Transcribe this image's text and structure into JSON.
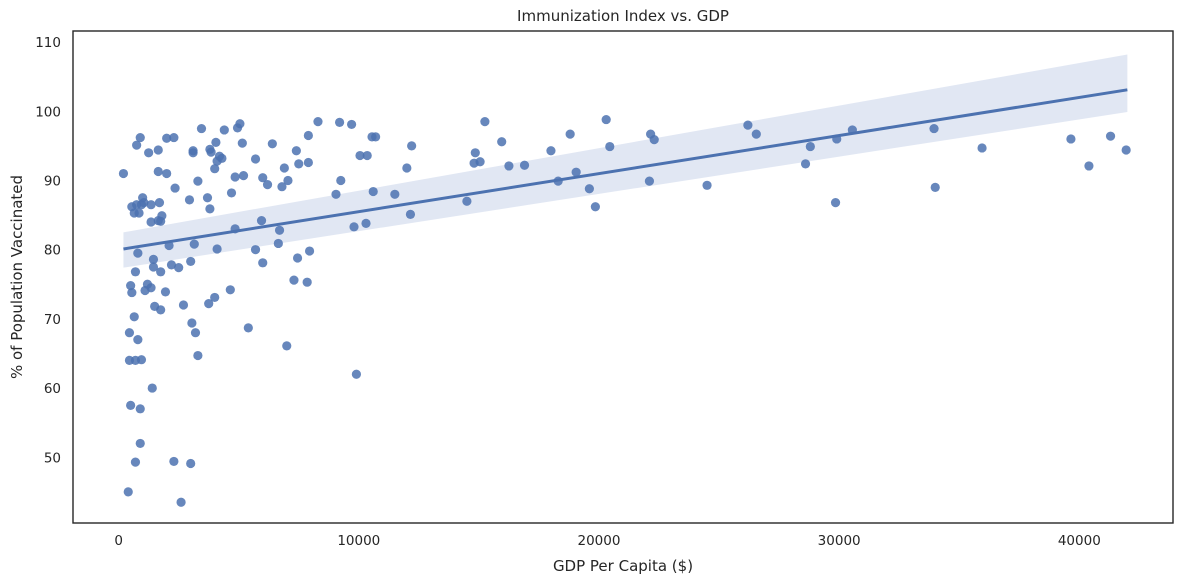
{
  "chart_data": {
    "type": "scatter",
    "title": "Immunization Index vs. GDP",
    "xlabel": "GDP Per Capita ($)",
    "ylabel": "% of Population Vaccinated",
    "xlim": [
      -1900,
      43900
    ],
    "ylim": [
      40.5,
      111.6
    ],
    "xticks": [
      0,
      10000,
      20000,
      30000,
      40000
    ],
    "yticks": [
      50,
      60,
      70,
      80,
      90,
      100,
      110
    ],
    "grid": false,
    "legend": "none",
    "point_color": "#4c72b0",
    "regression": {
      "x": [
        200,
        42000
      ],
      "y": [
        80.1,
        103.1
      ],
      "ci_lower": [
        77.4,
        99.9
      ],
      "ci_upper": [
        82.5,
        108.2
      ],
      "color": "#4c72b0",
      "band_color": "#c8d3ea"
    },
    "points": [
      [
        200,
        91
      ],
      [
        400,
        45
      ],
      [
        450,
        68
      ],
      [
        450,
        64
      ],
      [
        500,
        57.5
      ],
      [
        500,
        74.8
      ],
      [
        550,
        86.2
      ],
      [
        550,
        73.8
      ],
      [
        650,
        85.3
      ],
      [
        650,
        70.3
      ],
      [
        700,
        76.8
      ],
      [
        700,
        64
      ],
      [
        700,
        49.3
      ],
      [
        750,
        95.1
      ],
      [
        750,
        86.5
      ],
      [
        800,
        67
      ],
      [
        800,
        79.5
      ],
      [
        850,
        85.3
      ],
      [
        900,
        96.2
      ],
      [
        900,
        57
      ],
      [
        900,
        52
      ],
      [
        950,
        86.5
      ],
      [
        950,
        64.1
      ],
      [
        1000,
        87.5
      ],
      [
        1050,
        86.8
      ],
      [
        1100,
        74.1
      ],
      [
        1200,
        75
      ],
      [
        1250,
        94
      ],
      [
        1350,
        86.5
      ],
      [
        1350,
        84
      ],
      [
        1350,
        74.5
      ],
      [
        1400,
        60
      ],
      [
        1450,
        77.5
      ],
      [
        1450,
        78.6
      ],
      [
        1500,
        71.8
      ],
      [
        1650,
        91.3
      ],
      [
        1650,
        94.4
      ],
      [
        1650,
        84.2
      ],
      [
        1700,
        86.8
      ],
      [
        1750,
        84.1
      ],
      [
        1750,
        71.3
      ],
      [
        1750,
        76.8
      ],
      [
        1800,
        84.9
      ],
      [
        1950,
        73.9
      ],
      [
        2000,
        96.1
      ],
      [
        2000,
        91
      ],
      [
        2100,
        80.6
      ],
      [
        2200,
        77.8
      ],
      [
        2300,
        96.2
      ],
      [
        2300,
        49.4
      ],
      [
        2350,
        88.9
      ],
      [
        2500,
        77.4
      ],
      [
        2600,
        43.5
      ],
      [
        2700,
        72
      ],
      [
        2950,
        87.2
      ],
      [
        3000,
        78.3
      ],
      [
        3000,
        49.1
      ],
      [
        3050,
        69.4
      ],
      [
        3100,
        94.3
      ],
      [
        3100,
        94
      ],
      [
        3150,
        80.8
      ],
      [
        3200,
        68
      ],
      [
        3300,
        64.7
      ],
      [
        3300,
        89.9
      ],
      [
        3450,
        97.5
      ],
      [
        3700,
        87.5
      ],
      [
        3750,
        72.2
      ],
      [
        3800,
        85.9
      ],
      [
        3800,
        94.5
      ],
      [
        3850,
        94.1
      ],
      [
        4000,
        91.7
      ],
      [
        4000,
        73.1
      ],
      [
        4050,
        95.5
      ],
      [
        4100,
        92.8
      ],
      [
        4100,
        80.1
      ],
      [
        4200,
        93.5
      ],
      [
        4300,
        93.2
      ],
      [
        4400,
        97.3
      ],
      [
        4650,
        74.2
      ],
      [
        4700,
        88.2
      ],
      [
        4850,
        83
      ],
      [
        4850,
        90.5
      ],
      [
        4950,
        97.6
      ],
      [
        5050,
        98.2
      ],
      [
        5150,
        95.4
      ],
      [
        5200,
        90.7
      ],
      [
        5400,
        68.7
      ],
      [
        5700,
        93.1
      ],
      [
        5700,
        80
      ],
      [
        5950,
        84.2
      ],
      [
        6000,
        90.4
      ],
      [
        6000,
        78.1
      ],
      [
        6200,
        89.4
      ],
      [
        6400,
        95.3
      ],
      [
        6650,
        80.9
      ],
      [
        6700,
        82.8
      ],
      [
        6800,
        89.1
      ],
      [
        6900,
        91.8
      ],
      [
        7000,
        66.1
      ],
      [
        7050,
        90
      ],
      [
        7300,
        75.6
      ],
      [
        7400,
        94.3
      ],
      [
        7450,
        78.8
      ],
      [
        7500,
        92.4
      ],
      [
        7850,
        75.3
      ],
      [
        7900,
        96.5
      ],
      [
        7900,
        92.6
      ],
      [
        7950,
        79.8
      ],
      [
        8300,
        98.5
      ],
      [
        9050,
        88
      ],
      [
        9200,
        98.4
      ],
      [
        9250,
        90
      ],
      [
        9700,
        98.1
      ],
      [
        9800,
        83.3
      ],
      [
        9900,
        62
      ],
      [
        10050,
        93.6
      ],
      [
        10300,
        83.8
      ],
      [
        10350,
        93.6
      ],
      [
        10550,
        96.3
      ],
      [
        10600,
        88.4
      ],
      [
        10700,
        96.3
      ],
      [
        11500,
        88
      ],
      [
        12000,
        91.8
      ],
      [
        12150,
        85.1
      ],
      [
        12200,
        95
      ],
      [
        14500,
        87
      ],
      [
        14800,
        92.5
      ],
      [
        14850,
        94
      ],
      [
        15050,
        92.7
      ],
      [
        15250,
        98.5
      ],
      [
        15950,
        95.6
      ],
      [
        16250,
        92.1
      ],
      [
        16900,
        92.2
      ],
      [
        18000,
        94.3
      ],
      [
        18300,
        89.9
      ],
      [
        18800,
        96.7
      ],
      [
        19050,
        91.2
      ],
      [
        19600,
        88.8
      ],
      [
        19850,
        86.2
      ],
      [
        20300,
        98.8
      ],
      [
        20450,
        94.9
      ],
      [
        22100,
        89.9
      ],
      [
        22150,
        96.7
      ],
      [
        22300,
        95.9
      ],
      [
        24500,
        89.3
      ],
      [
        26200,
        98
      ],
      [
        26550,
        96.7
      ],
      [
        28600,
        92.4
      ],
      [
        28800,
        94.9
      ],
      [
        29850,
        86.8
      ],
      [
        29900,
        96
      ],
      [
        30550,
        97.3
      ],
      [
        33950,
        97.5
      ],
      [
        34000,
        89
      ],
      [
        35950,
        94.7
      ],
      [
        39650,
        96
      ],
      [
        40400,
        92.1
      ],
      [
        41300,
        96.4
      ],
      [
        41950,
        94.4
      ]
    ]
  }
}
